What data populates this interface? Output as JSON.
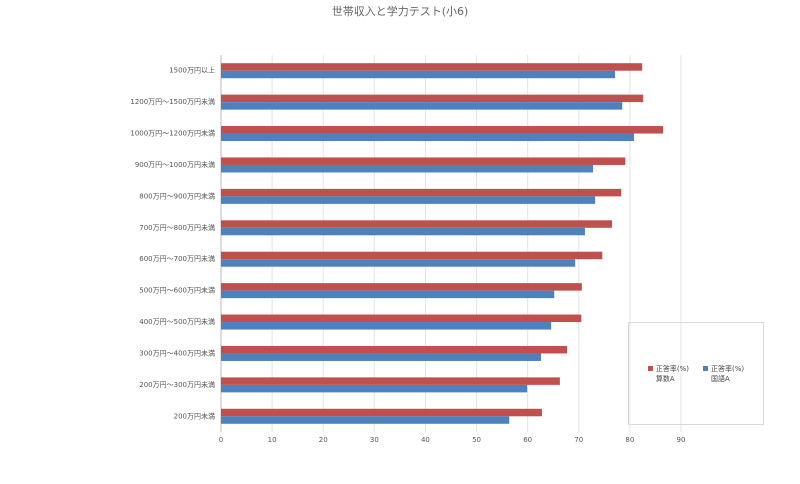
{
  "chart_data": {
    "type": "barh",
    "title": "世帯収入と学力テスト(小6)",
    "categories": [
      "1500万円以上",
      "1200万円～1500万円未満",
      "1000万円～1200万円未満",
      "900万円～1000万円未満",
      "800万円～900万円未満",
      "700万円～800万円未満",
      "600万円～700万円未満",
      "500万円～600万円未満",
      "400万円～500万円未満",
      "300万円～400万円未満",
      "200万円～300万円未満",
      "200万円未満"
    ],
    "series": [
      {
        "name": "正答率(%)\n算数A",
        "color": "#c0504d",
        "values": [
          82.4,
          82.6,
          86.5,
          79.1,
          78.3,
          76.5,
          74.6,
          70.6,
          70.5,
          67.7,
          66.3,
          62.8
        ]
      },
      {
        "name": "正答率(%)\n国語A",
        "color": "#4f81bd",
        "values": [
          77.1,
          78.5,
          80.8,
          72.8,
          73.2,
          71.2,
          69.3,
          65.2,
          64.6,
          62.6,
          59.9,
          56.4
        ]
      }
    ],
    "xlim": [
      0,
      90
    ],
    "xticks": [
      0,
      10,
      20,
      30,
      40,
      50,
      60,
      70,
      80,
      90
    ],
    "grid": true,
    "legend": "right"
  }
}
